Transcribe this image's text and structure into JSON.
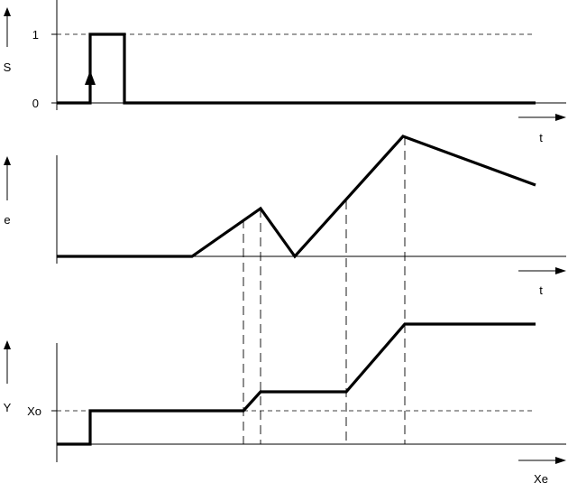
{
  "diagram": {
    "panel_s": {
      "axis_label": "S",
      "tick_high": "1",
      "tick_low": "0",
      "time_label": "t"
    },
    "panel_e": {
      "axis_label": "e",
      "time_label": "t"
    },
    "panel_y": {
      "axis_label": "Y",
      "level_label": "Xo",
      "x_axis_label": "Xe"
    }
  }
}
